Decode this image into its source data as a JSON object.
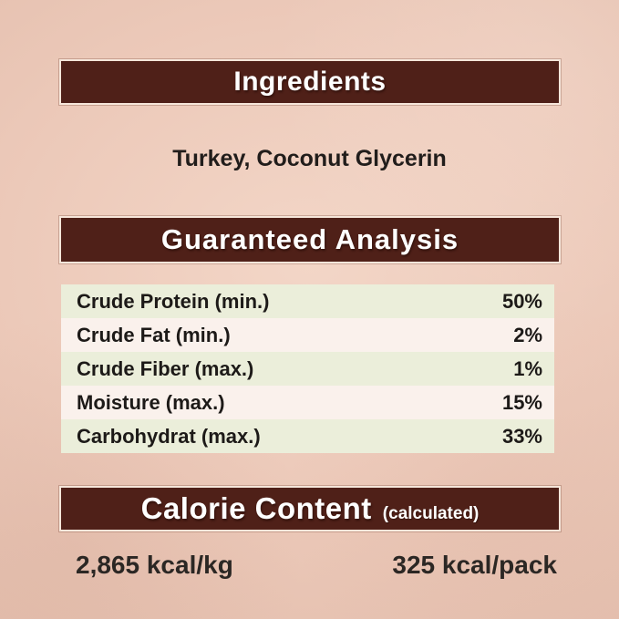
{
  "label": {
    "ingredients": {
      "heading": "Ingredients",
      "list": "Turkey, Coconut Glycerin"
    },
    "guaranteed_analysis": {
      "heading": "Guaranteed Analysis",
      "rows": [
        {
          "label": "Crude Protein (min.)",
          "value": "50%"
        },
        {
          "label": "Crude Fat (min.)",
          "value": "2%"
        },
        {
          "label": "Crude Fiber (max.)",
          "value": "1%"
        },
        {
          "label": "Moisture (max.)",
          "value": "15%"
        },
        {
          "label": "Carbohydrat (max.)",
          "value": "33%"
        }
      ]
    },
    "calorie_content": {
      "heading": "Calorie Content",
      "qualifier": "(calculated)",
      "per_kg": "2,865 kcal/kg",
      "per_pack": "325 kcal/pack"
    }
  },
  "colors": {
    "background": "#ecc9b9",
    "banner": "#4f2018",
    "banner_outline": "#f6e6da",
    "banner_text": "#ffffff",
    "row_green": "#ebeeda",
    "row_light": "#faf1ec",
    "text_dark": "#211d1b"
  }
}
